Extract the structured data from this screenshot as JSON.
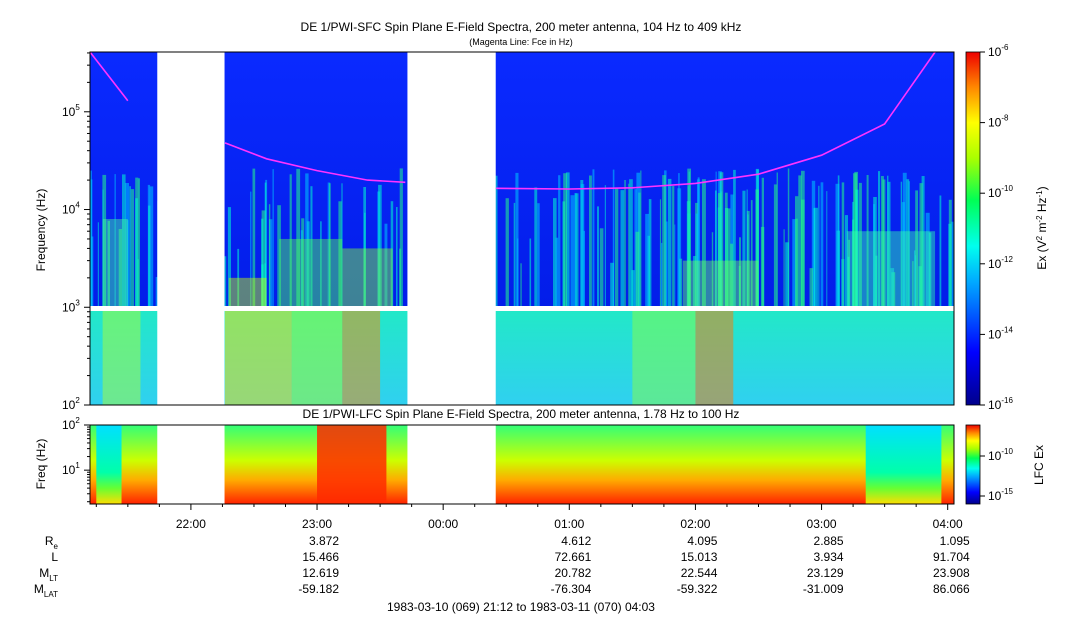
{
  "chart_data": [
    {
      "type": "heatmap",
      "title": "DE 1/PWI-SFC  Spin Plane E-Field Spectra, 200 meter antenna, 104 Hz to 409 kHz",
      "subtitle": "(Magenta Line: Fce in Hz)",
      "ylabel": "Frequency (Hz)",
      "yscale": "log",
      "ylim": [
        100,
        409000
      ],
      "ytick_labels": [
        {
          "base": "10",
          "exp": "2"
        },
        {
          "base": "10",
          "exp": "3"
        },
        {
          "base": "10",
          "exp": "4"
        },
        {
          "base": "10",
          "exp": "5"
        }
      ],
      "data_gaps": [
        [
          "21:44",
          "22:16"
        ],
        [
          "23:43",
          "00:25"
        ]
      ],
      "fce_line": {
        "segments": [
          {
            "t": [
              21.2,
              21.5
            ],
            "f": [
              420000,
              130000
            ]
          },
          {
            "t": [
              22.27,
              22.6,
              23.0,
              23.4,
              23.7
            ],
            "f": [
              48000,
              33000,
              25000,
              20000,
              19000
            ]
          },
          {
            "t": [
              24.42,
              25.0,
              25.5,
              26.0,
              26.5,
              27.0,
              27.5,
              27.9
            ],
            "f": [
              16500,
              16200,
              16700,
              18500,
              23000,
              36000,
              75000,
              420000
            ]
          }
        ]
      },
      "colorbar": {
        "label_main": "Ex (V",
        "label_sup1": "2",
        "label_mid": " m",
        "label_sup2": "-2",
        "label_mid2": " Hz",
        "label_sup3": "-1",
        "label_end": ")",
        "scale": "log",
        "range": [
          1e-16,
          1e-06
        ],
        "tick_labels": [
          {
            "base": "10",
            "exp": "-6"
          },
          {
            "base": "10",
            "exp": "-8"
          },
          {
            "base": "10",
            "exp": "-10"
          },
          {
            "base": "10",
            "exp": "-12"
          },
          {
            "base": "10",
            "exp": "-14"
          },
          {
            "base": "10",
            "exp": "-16"
          }
        ]
      }
    },
    {
      "type": "heatmap",
      "title": "DE 1/PWI-LFC  Spin Plane E-Field Spectra, 200 meter antenna, 1.78 Hz to 100 Hz",
      "ylabel": "Freq (Hz)",
      "yscale": "log",
      "ylim": [
        1.78,
        100
      ],
      "ytick_labels": [
        {
          "base": "10",
          "exp": "1"
        },
        {
          "base": "10",
          "exp": "2"
        }
      ],
      "data_gaps": [
        [
          "21:44",
          "22:16"
        ],
        [
          "23:43",
          "00:25"
        ]
      ],
      "colorbar": {
        "label": "LFC Ex",
        "tick_labels": [
          {
            "base": "10",
            "exp": "-10"
          },
          {
            "base": "10",
            "exp": "-15"
          }
        ]
      }
    }
  ],
  "x_axis": {
    "time_ticks": [
      "22:00",
      "23:00",
      "00:00",
      "01:00",
      "02:00",
      "03:00",
      "04:00"
    ],
    "ephemeris_rows": [
      {
        "label": "R",
        "sub": "e",
        "values": [
          "",
          "3.872",
          "",
          "4.612",
          "4.095",
          "2.885",
          "1.095"
        ]
      },
      {
        "label": "L",
        "sub": "",
        "values": [
          "",
          "15.466",
          "",
          "72.661",
          "15.013",
          "3.934",
          "91.704"
        ]
      },
      {
        "label": "M",
        "sub": "LT",
        "values": [
          "",
          "12.619",
          "",
          "20.782",
          "22.544",
          "23.129",
          "23.908"
        ]
      },
      {
        "label": "M",
        "sub": "LAT",
        "values": [
          "",
          "-59.182",
          "",
          "-76.304",
          "-59.322",
          "-31.009",
          "86.066"
        ]
      }
    ],
    "range_text": "1983-03-10 (069) 21:12 to 1983-03-11 (070) 04:03"
  }
}
